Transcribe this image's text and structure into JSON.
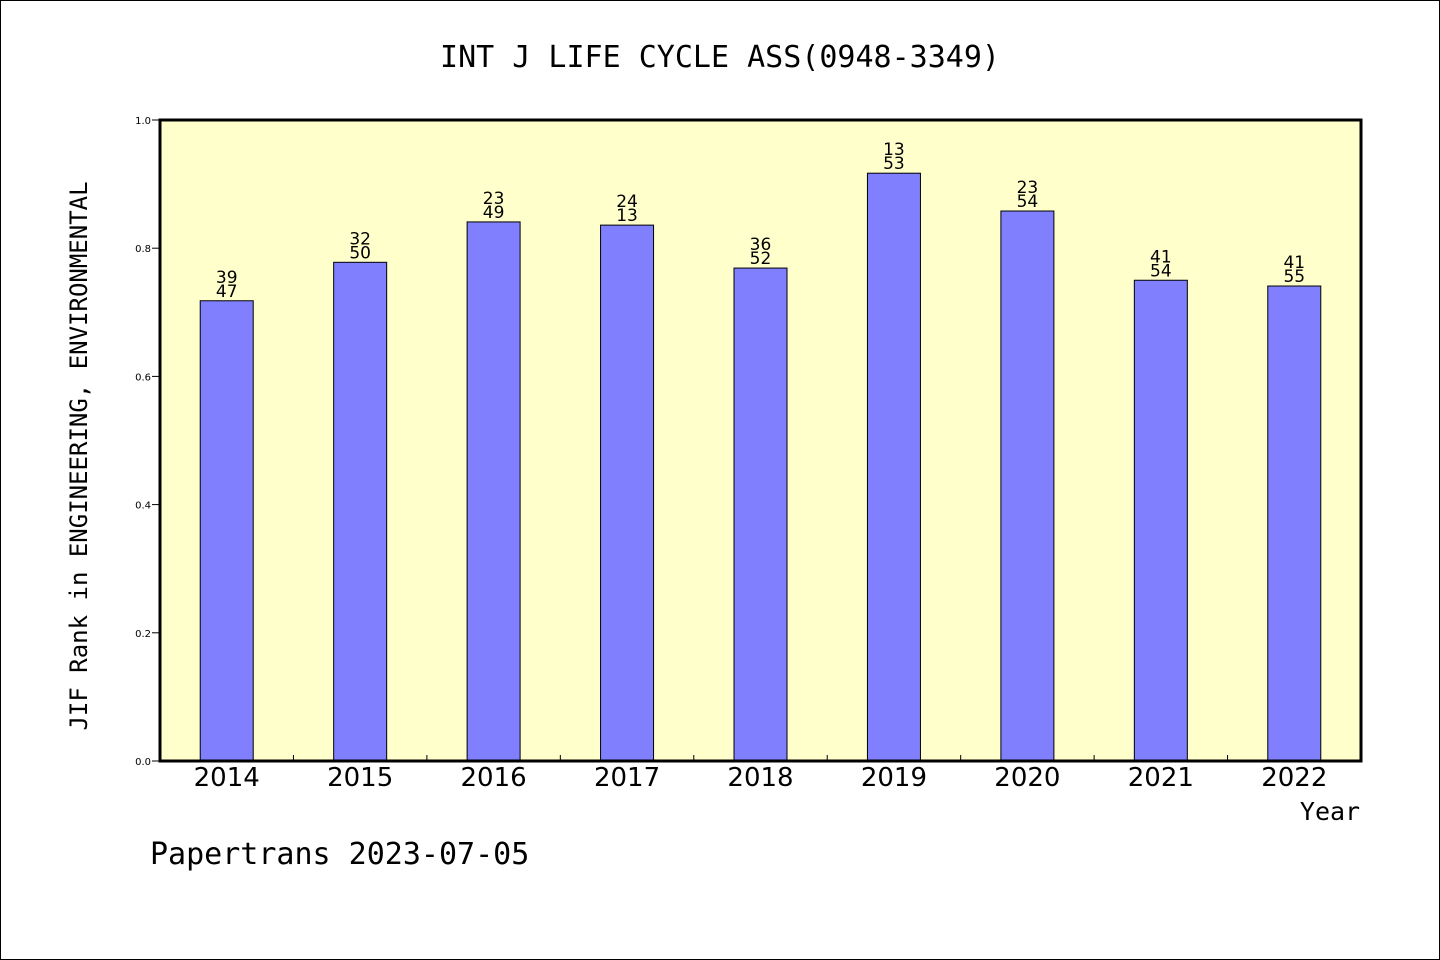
{
  "chart_data": {
    "type": "bar",
    "title": "INT J LIFE CYCLE ASS(0948-3349)",
    "xlabel": "Year",
    "ylabel": "JIF Rank in ENGINEERING, ENVIRONMENTAL",
    "categories": [
      "2014",
      "2015",
      "2016",
      "2017",
      "2018",
      "2019",
      "2020",
      "2021",
      "2022"
    ],
    "values": [
      0.718,
      0.778,
      0.841,
      0.836,
      0.769,
      0.917,
      0.858,
      0.75,
      0.741
    ],
    "bar_labels": [
      [
        "39",
        "47"
      ],
      [
        "32",
        "50"
      ],
      [
        "23",
        "49"
      ],
      [
        "24",
        "13"
      ],
      [
        "36",
        "52"
      ],
      [
        "13",
        "53"
      ],
      [
        "23",
        "54"
      ],
      [
        "41",
        "54"
      ],
      [
        "41",
        "55"
      ]
    ],
    "ylim": [
      0,
      1.0
    ],
    "yticks": [
      "0.0",
      "0.2",
      "0.4",
      "0.6",
      "0.8",
      "1.0"
    ],
    "grid": false,
    "legend": "none",
    "colors": {
      "bar": "#8080ff",
      "plot_background": "#ffffcc",
      "axis": "#000000"
    }
  },
  "footer": {
    "credit": "Papertrans 2023-07-05"
  }
}
